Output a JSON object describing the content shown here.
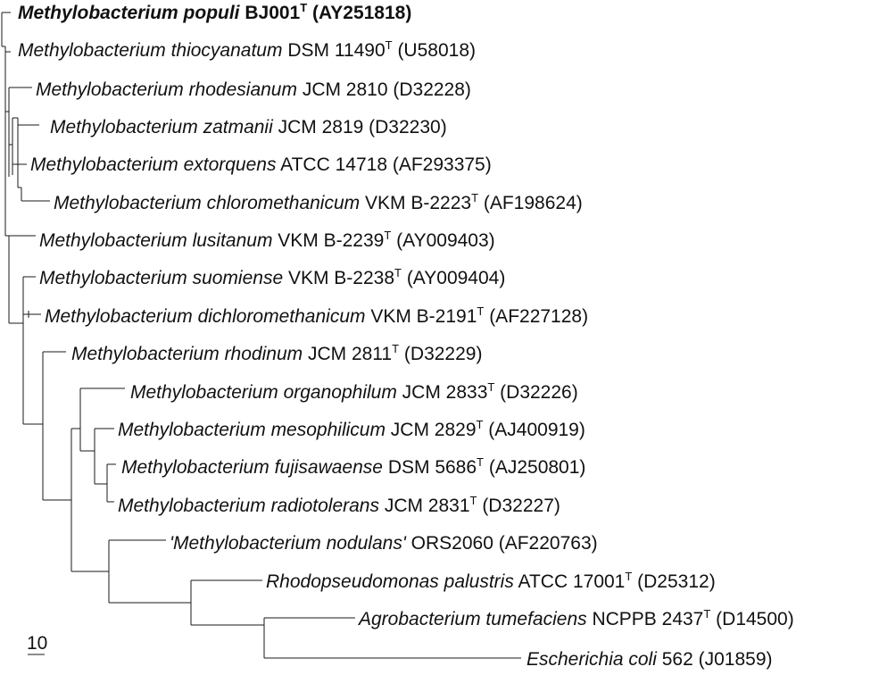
{
  "tree": {
    "taxa": [
      {
        "italic": "Methylobacterium populi",
        "rest": " BJ001",
        "type": "T",
        "acc": " (AY251818)",
        "bold": true
      },
      {
        "italic": "Methylobacterium thiocyanatum",
        "rest": " DSM 11490",
        "type": "T",
        "acc": " (U58018)",
        "bold": false
      },
      {
        "italic": "Methylobacterium rhodesianum",
        "rest": " JCM 2810 (D32228)",
        "type": "",
        "acc": "",
        "bold": false
      },
      {
        "italic": "Methylobacterium zatmanii",
        "rest": " JCM 2819 (D32230)",
        "type": "",
        "acc": "",
        "bold": false
      },
      {
        "italic": "Methylobacterium extorquens",
        "rest": " ATCC 14718 (AF293375)",
        "type": "",
        "acc": "",
        "bold": false
      },
      {
        "italic": "Methylobacterium chloromethanicum",
        "rest": " VKM B-2223",
        "type": "T",
        "acc": " (AF198624)",
        "bold": false
      },
      {
        "italic": "Methylobacterium lusitanum",
        "rest": " VKM B-2239",
        "type": "T",
        "acc": " (AY009403)",
        "bold": false
      },
      {
        "italic": "Methylobacterium suomiense",
        "rest": " VKM B-2238",
        "type": "T",
        "acc": " (AY009404)",
        "bold": false
      },
      {
        "italic": "Methylobacterium dichloromethanicum",
        "rest": " VKM B-2191",
        "type": "T",
        "acc": " (AF227128)",
        "bold": false
      },
      {
        "italic": "Methylobacterium rhodinum",
        "rest": " JCM 2811",
        "type": "T",
        "acc": " (D32229)",
        "bold": false
      },
      {
        "italic": "Methylobacterium organophilum",
        "rest": " JCM 2833",
        "type": "T",
        "acc": " (D32226)",
        "bold": false
      },
      {
        "italic": "Methylobacterium mesophilicum",
        "rest": " JCM 2829",
        "type": "T",
        "acc": " (AJ400919)",
        "bold": false
      },
      {
        "italic": "Methylobacterium fujisawaense",
        "rest": " DSM 5686",
        "type": "T",
        "acc": " (AJ250801)",
        "bold": false
      },
      {
        "italic": "Methylobacterium radiotolerans",
        "rest": " JCM 2831",
        "type": "T",
        "acc": " (D32227)",
        "bold": false
      },
      {
        "italic": "'Methylobacterium nodulans'",
        "rest": " ORS2060 (AF220763)",
        "type": "",
        "acc": "",
        "bold": false
      },
      {
        "italic": "Rhodopseudomonas palustris",
        "rest": " ATCC 17001",
        "type": "T",
        "acc": " (D25312)",
        "bold": false
      },
      {
        "italic": "Agrobacterium tumefaciens",
        "rest": " NCPPB 2437",
        "type": "T",
        "acc": " (D14500)",
        "bold": false
      },
      {
        "italic": "Escherichia coli",
        "rest": " 562 (J01859)",
        "type": "",
        "acc": "",
        "bold": false
      }
    ],
    "scale_bar": {
      "label": "10"
    }
  }
}
